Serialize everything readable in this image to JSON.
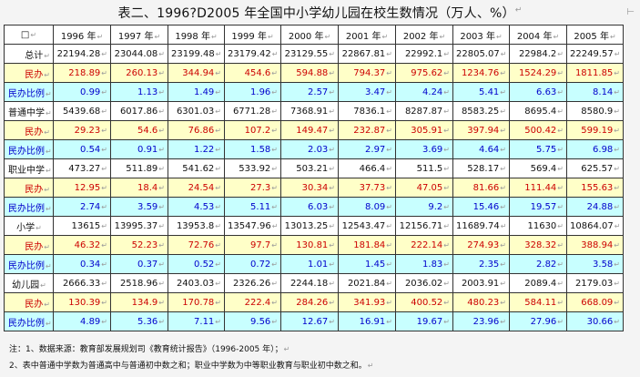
{
  "title": "表二、1996?D2005 年全国中小学幼儿园在校生数情况（万人、%）",
  "header": {
    "corner": "□",
    "years": [
      "1996 年",
      "1997 年",
      "1998 年",
      "1999 年",
      "2000 年",
      "2001 年",
      "2002 年",
      "2003 年",
      "2004 年",
      "2005 年"
    ]
  },
  "rows": [
    {
      "label": "总计",
      "style": "white",
      "align": "right",
      "values": [
        "22194.28",
        "23044.08",
        "23199.48",
        "23179.42",
        "23129.55",
        "22867.81",
        "22992.1",
        "22805.07",
        "22984.2",
        "22249.57"
      ]
    },
    {
      "label": "民办",
      "style": "yellow",
      "align": "right",
      "values": [
        "218.89",
        "260.13",
        "344.94",
        "454.6",
        "594.88",
        "794.37",
        "975.62",
        "1234.76",
        "1524.29",
        "1811.85"
      ]
    },
    {
      "label": "民办比例",
      "style": "cyan",
      "align": "left",
      "values": [
        "0.99",
        "1.13",
        "1.49",
        "1.96",
        "2.57",
        "3.47",
        "4.24",
        "5.41",
        "6.63",
        "8.14"
      ]
    },
    {
      "label": "普通中学",
      "style": "white",
      "align": "left",
      "values": [
        "5439.68",
        "6017.86",
        "6301.03",
        "6771.28",
        "7368.91",
        "7836.1",
        "8287.87",
        "8583.25",
        "8695.4",
        "8580.9"
      ]
    },
    {
      "label": "民办",
      "style": "yellow",
      "align": "right",
      "values": [
        "29.23",
        "54.6",
        "76.86",
        "107.2",
        "149.47",
        "232.87",
        "305.91",
        "397.94",
        "500.42",
        "599.19"
      ]
    },
    {
      "label": "民办比例",
      "style": "cyan",
      "align": "left",
      "values": [
        "0.54",
        "0.91",
        "1.22",
        "1.58",
        "2.03",
        "2.97",
        "3.69",
        "4.64",
        "5.75",
        "6.98"
      ]
    },
    {
      "label": "职业中学",
      "style": "white",
      "align": "left",
      "values": [
        "473.27",
        "511.89",
        "541.62",
        "533.92",
        "503.21",
        "466.4",
        "511.5",
        "528.17",
        "569.4",
        "625.57"
      ]
    },
    {
      "label": "民办",
      "style": "yellow",
      "align": "right",
      "values": [
        "12.95",
        "18.4",
        "24.54",
        "27.3",
        "30.34",
        "37.73",
        "47.05",
        "81.66",
        "111.44",
        "155.63"
      ]
    },
    {
      "label": "民办比例",
      "style": "cyan",
      "align": "left",
      "values": [
        "2.74",
        "3.59",
        "4.53",
        "5.11",
        "6.03",
        "8.09",
        "9.2",
        "15.46",
        "19.57",
        "24.88"
      ]
    },
    {
      "label": "小学",
      "style": "white",
      "align": "center",
      "values": [
        "13615",
        "13995.37",
        "13953.8",
        "13547.96",
        "13013.25",
        "12543.47",
        "12156.71",
        "11689.74",
        "11630",
        "10864.07"
      ]
    },
    {
      "label": "民办",
      "style": "yellow",
      "align": "right",
      "values": [
        "46.32",
        "52.23",
        "72.76",
        "97.7",
        "130.81",
        "181.84",
        "222.14",
        "274.93",
        "328.32",
        "388.94"
      ]
    },
    {
      "label": "民办比例",
      "style": "cyan",
      "align": "left",
      "values": [
        "0.34",
        "0.37",
        "0.52",
        "0.72",
        "1.01",
        "1.45",
        "1.83",
        "2.35",
        "2.82",
        "3.58"
      ]
    },
    {
      "label": "幼儿园",
      "style": "white",
      "align": "center",
      "values": [
        "2666.33",
        "2518.96",
        "2403.03",
        "2326.26",
        "2244.18",
        "2021.84",
        "2036.02",
        "2003.91",
        "2089.4",
        "2179.03"
      ]
    },
    {
      "label": "民办",
      "style": "yellow",
      "align": "right",
      "values": [
        "130.39",
        "134.9",
        "170.78",
        "222.4",
        "284.26",
        "341.93",
        "400.52",
        "480.23",
        "584.11",
        "668.09"
      ]
    },
    {
      "label": "民办比例",
      "style": "cyan",
      "align": "left",
      "values": [
        "4.89",
        "5.36",
        "7.11",
        "9.56",
        "12.67",
        "16.91",
        "19.67",
        "23.96",
        "27.96",
        "30.66"
      ]
    }
  ],
  "notes": {
    "line1": "注：1、数据来源：教育部发展规划司《教育统计报告》（1996-2005 年）；",
    "line2": "2、表中普通中学数为普通高中与普通初中数之和；职业中学数为中等职业教育与职业初中数之和。"
  },
  "colors": {
    "yellow_row_bg": "#ffffc8",
    "yellow_row_text": "#cc0000",
    "cyan_row_bg": "#c8ffff",
    "cyan_row_text": "#0000cc"
  }
}
